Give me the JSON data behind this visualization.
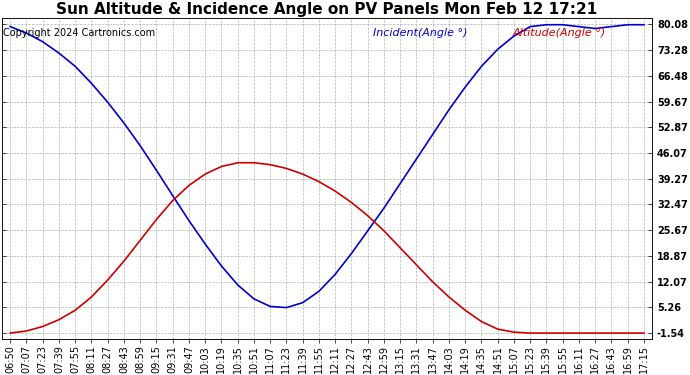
{
  "title": "Sun Altitude & Incidence Angle on PV Panels Mon Feb 12 17:21",
  "copyright": "Copyright 2024 Cartronics.com",
  "legend_incident": "Incident(Angle °)",
  "legend_altitude": "Altitude(Angle °)",
  "incident_color": "#0000cc",
  "altitude_color": "#cc0000",
  "bg_color": "#ffffff",
  "grid_color": "#aaaaaa",
  "ymin": -1.54,
  "ymax": 80.08,
  "yticks": [
    80.08,
    73.28,
    66.48,
    59.67,
    52.87,
    46.07,
    39.27,
    32.47,
    25.67,
    18.87,
    12.07,
    5.26,
    -1.54
  ],
  "time_labels": [
    "06:50",
    "07:07",
    "07:23",
    "07:39",
    "07:55",
    "08:11",
    "08:27",
    "08:43",
    "08:59",
    "09:15",
    "09:31",
    "09:47",
    "10:03",
    "10:19",
    "10:35",
    "10:51",
    "11:07",
    "11:23",
    "11:39",
    "11:55",
    "12:11",
    "12:27",
    "12:43",
    "12:59",
    "13:15",
    "13:31",
    "13:47",
    "14:03",
    "14:19",
    "14:35",
    "14:51",
    "15:07",
    "15:23",
    "15:39",
    "15:55",
    "16:11",
    "16:27",
    "16:43",
    "16:59",
    "17:15"
  ],
  "incident_values": [
    79.5,
    77.8,
    75.5,
    72.5,
    69.0,
    64.5,
    59.5,
    54.0,
    48.0,
    41.5,
    34.8,
    28.2,
    22.0,
    16.2,
    11.2,
    7.5,
    5.5,
    5.2,
    6.5,
    9.5,
    14.0,
    19.5,
    25.5,
    31.5,
    38.0,
    44.5,
    51.0,
    57.5,
    63.5,
    69.0,
    73.5,
    77.0,
    79.5,
    80.0,
    80.0,
    79.5,
    79.0,
    79.5,
    80.0,
    80.0
  ],
  "altitude_values": [
    -1.54,
    -1.0,
    0.2,
    2.0,
    4.5,
    8.0,
    12.5,
    17.5,
    23.0,
    28.5,
    33.5,
    37.5,
    40.5,
    42.5,
    43.5,
    43.5,
    43.0,
    42.0,
    40.5,
    38.5,
    36.0,
    33.0,
    29.5,
    25.5,
    21.0,
    16.5,
    12.0,
    8.0,
    4.5,
    1.5,
    -0.5,
    -1.3,
    -1.54,
    -1.54,
    -1.54,
    -1.54,
    -1.54,
    -1.54,
    -1.54,
    -1.54
  ],
  "title_fontsize": 11,
  "copyright_fontsize": 7,
  "legend_fontsize": 8,
  "tick_fontsize": 7
}
